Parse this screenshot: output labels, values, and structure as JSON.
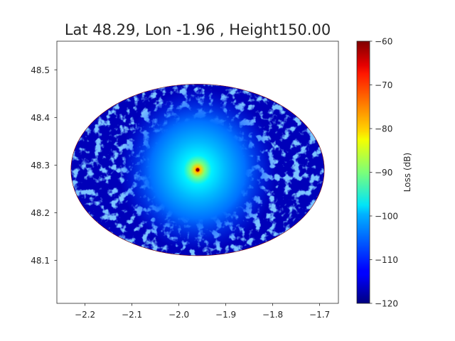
{
  "chart_data": {
    "type": "heatmap",
    "title": "Lat 48.29, Lon -1.96 , Height150.00",
    "xlabel": "",
    "ylabel": "",
    "xlim": [
      -2.26,
      -1.66
    ],
    "ylim": [
      48.01,
      48.56
    ],
    "x_ticks": [
      -2.2,
      -2.1,
      -2.0,
      -1.9,
      -1.8,
      -1.7
    ],
    "x_tick_labels": [
      "−2.2",
      "−2.1",
      "−2.0",
      "−1.9",
      "−1.8",
      "−1.7"
    ],
    "y_ticks": [
      48.1,
      48.2,
      48.3,
      48.4,
      48.5
    ],
    "y_tick_labels": [
      "48.1",
      "48.2",
      "48.3",
      "48.4",
      "48.5"
    ],
    "grid": false,
    "colormap": "jet",
    "coverage_ellipse": {
      "center_lon": -1.96,
      "center_lat": 48.29,
      "lon_radius": 0.27,
      "lat_radius": 0.18
    },
    "transmitter": {
      "lon": -1.96,
      "lat": 48.29,
      "loss_db": -60
    },
    "typical_loss_db": -117,
    "colorbar": {
      "label": "Loss (dB)",
      "vmin": -120,
      "vmax": -60,
      "ticks": [
        -60,
        -70,
        -80,
        -90,
        -100,
        -110,
        -120
      ],
      "tick_labels": [
        "−60",
        "−70",
        "−80",
        "−90",
        "−100",
        "−110",
        "−120"
      ]
    }
  }
}
